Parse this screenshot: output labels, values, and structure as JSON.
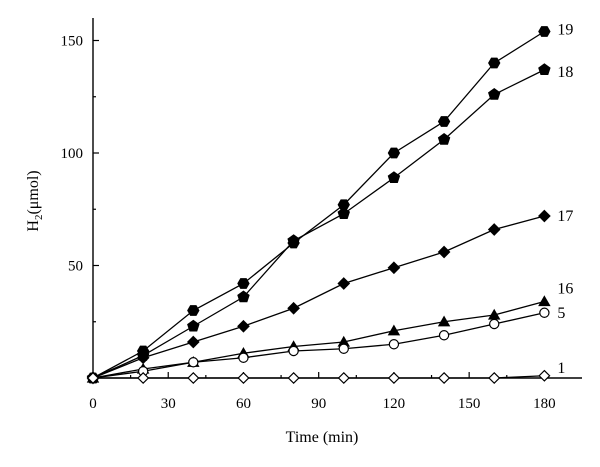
{
  "chart_data": {
    "type": "line",
    "title": "",
    "xlabel": "Time (min)",
    "ylabel_main": "H",
    "ylabel_sub": "2",
    "ylabel_rest": "(μmol)",
    "xlim": [
      0,
      195
    ],
    "ylim": [
      0,
      160
    ],
    "xticks": [
      0,
      30,
      60,
      90,
      120,
      150,
      180
    ],
    "yticks": [
      50,
      100,
      150
    ],
    "grid": false,
    "legend": "none",
    "series": [
      {
        "name": "19",
        "marker": "hexagon-filled",
        "x": [
          0,
          20,
          40,
          60,
          80,
          100,
          120,
          140,
          160,
          180
        ],
        "y": [
          0,
          12,
          30,
          42,
          60,
          77,
          100,
          114,
          140,
          154
        ]
      },
      {
        "name": "18",
        "marker": "pentagon-filled",
        "x": [
          0,
          20,
          40,
          60,
          80,
          100,
          120,
          140,
          160,
          180
        ],
        "y": [
          0,
          10,
          23,
          36,
          61,
          73,
          89,
          106,
          126,
          137
        ]
      },
      {
        "name": "17",
        "marker": "diamond-filled",
        "x": [
          0,
          20,
          40,
          60,
          80,
          100,
          120,
          140,
          160,
          180
        ],
        "y": [
          0,
          9,
          16,
          23,
          31,
          42,
          49,
          56,
          66,
          72
        ]
      },
      {
        "name": "16",
        "marker": "triangle-filled",
        "x": [
          0,
          20,
          40,
          60,
          80,
          100,
          120,
          140,
          160,
          180
        ],
        "y": [
          0,
          4,
          7,
          11,
          14,
          16,
          21,
          25,
          28,
          34
        ]
      },
      {
        "name": "5",
        "marker": "circle-open",
        "x": [
          0,
          20,
          40,
          60,
          80,
          100,
          120,
          140,
          160,
          180
        ],
        "y": [
          0,
          3,
          7,
          9,
          12,
          13,
          15,
          19,
          24,
          29
        ]
      },
      {
        "name": "1",
        "marker": "diamond-open",
        "x": [
          0,
          20,
          40,
          60,
          80,
          100,
          120,
          140,
          160,
          180
        ],
        "y": [
          0,
          0,
          0,
          0,
          0,
          0,
          0,
          0,
          0,
          1
        ]
      }
    ]
  }
}
